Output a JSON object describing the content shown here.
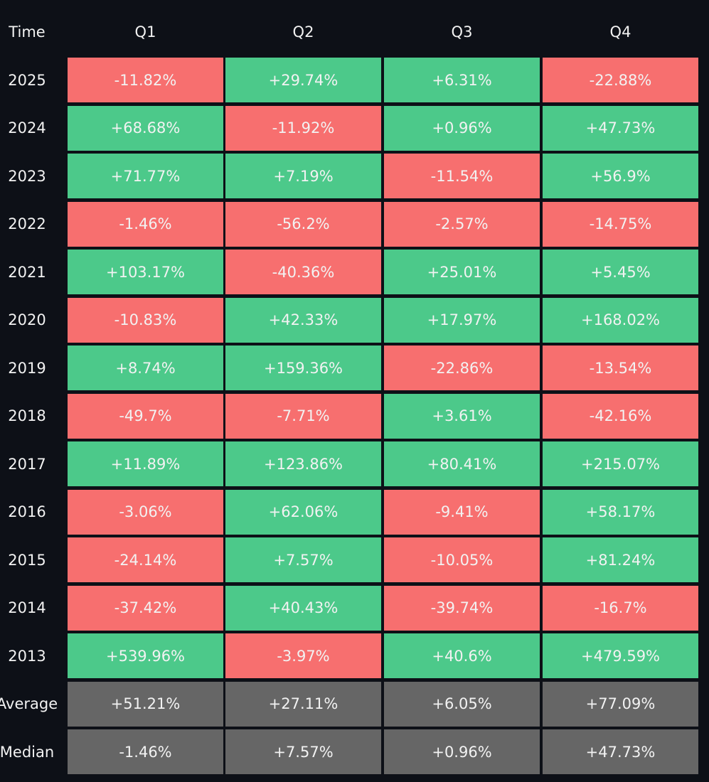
{
  "table": {
    "header": [
      "Time",
      "Q1",
      "Q2",
      "Q3",
      "Q4"
    ],
    "rows": [
      [
        "2025",
        "-11.82%",
        "+29.74%",
        "+6.31%",
        "-22.88%"
      ],
      [
        "2024",
        "+68.68%",
        "-11.92%",
        "+0.96%",
        "+47.73%"
      ],
      [
        "2023",
        "+71.77%",
        "+7.19%",
        "-11.54%",
        "+56.9%"
      ],
      [
        "2022",
        "-1.46%",
        "-56.2%",
        "-2.57%",
        "-14.75%"
      ],
      [
        "2021",
        "+103.17%",
        "-40.36%",
        "+25.01%",
        "+5.45%"
      ],
      [
        "2020",
        "-10.83%",
        "+42.33%",
        "+17.97%",
        "+168.02%"
      ],
      [
        "2019",
        "+8.74%",
        "+159.36%",
        "-22.86%",
        "-13.54%"
      ],
      [
        "2018",
        "-49.7%",
        "-7.71%",
        "+3.61%",
        "-42.16%"
      ],
      [
        "2017",
        "+11.89%",
        "+123.86%",
        "+80.41%",
        "+215.07%"
      ],
      [
        "2016",
        "-3.06%",
        "+62.06%",
        "-9.41%",
        "+58.17%"
      ],
      [
        "2015",
        "-24.14%",
        "+7.57%",
        "-10.05%",
        "+81.24%"
      ],
      [
        "2014",
        "-37.42%",
        "+40.43%",
        "-39.74%",
        "-16.7%"
      ],
      [
        "2013",
        "+539.96%",
        "-3.97%",
        "+40.6%",
        "+479.59%"
      ]
    ],
    "summary": [
      [
        "Average",
        "+51.21%",
        "+27.11%",
        "+6.05%",
        "+77.09%"
      ],
      [
        "Median",
        "-1.46%",
        "+7.57%",
        "+0.96%",
        "+47.73%"
      ]
    ]
  }
}
